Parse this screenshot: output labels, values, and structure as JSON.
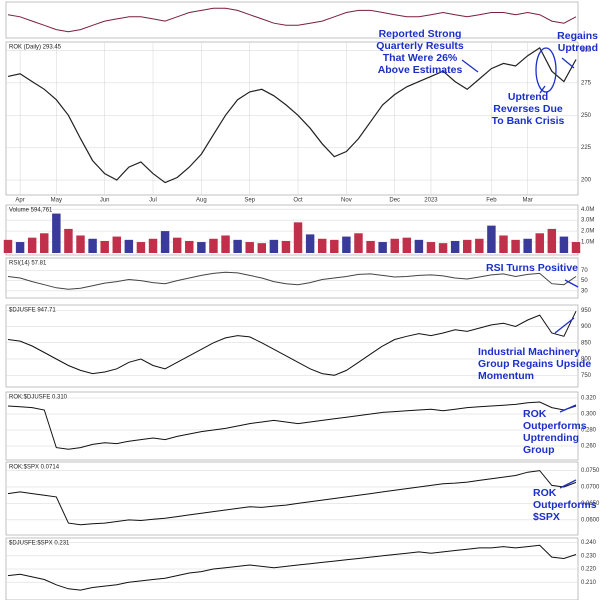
{
  "chart_data": [
    {
      "type": "line",
      "color": "#7a1f3d",
      "ylim": [
        -8,
        7
      ],
      "values": [
        2,
        1,
        -1,
        -3,
        -5,
        -6,
        -5,
        -3,
        -1,
        0,
        1,
        1,
        0,
        -1,
        1,
        3,
        4,
        5,
        5,
        4,
        2,
        0,
        -2,
        -3,
        -3,
        -2,
        -1,
        1,
        3,
        4,
        4,
        3,
        2,
        1,
        1,
        2,
        3,
        2,
        1,
        2,
        3,
        3,
        2,
        3,
        2,
        -1,
        -2,
        1
      ]
    },
    {
      "type": "line",
      "label": "ROK (Daily) 293.45",
      "color": "#222222",
      "ylim": [
        190,
        305
      ],
      "yticks": [
        200,
        225,
        250,
        275,
        300
      ],
      "values": [
        280,
        282,
        276,
        270,
        262,
        250,
        232,
        215,
        205,
        200,
        210,
        214,
        205,
        198,
        202,
        210,
        220,
        235,
        250,
        262,
        268,
        270,
        265,
        258,
        250,
        240,
        228,
        218,
        222,
        232,
        245,
        258,
        266,
        272,
        276,
        280,
        284,
        276,
        270,
        278,
        286,
        290,
        288,
        296,
        302,
        284,
        276,
        293
      ],
      "xticks": [
        {
          "value": 1,
          "label": "Apr"
        },
        {
          "value": 4,
          "label": "May"
        },
        {
          "value": 8,
          "label": "Jun"
        },
        {
          "value": 12,
          "label": "Jul"
        },
        {
          "value": 16,
          "label": "Aug"
        },
        {
          "value": 20,
          "label": "Sep"
        },
        {
          "value": 24,
          "label": "Oct"
        },
        {
          "value": 28,
          "label": "Nov"
        },
        {
          "value": 32,
          "label": "Dec"
        },
        {
          "value": 35,
          "label": "2023"
        },
        {
          "value": 40,
          "label": "Feb"
        },
        {
          "value": 43,
          "label": "Mar"
        }
      ]
    },
    {
      "type": "bar",
      "label": "Volume 594,761",
      "color": "#c0304a",
      "ylim": [
        0,
        4.2
      ],
      "yticks": [
        {
          "value": 1,
          "label": "1.0M"
        },
        {
          "value": 2,
          "label": "2.0M"
        },
        {
          "value": 3,
          "label": "3.0M"
        },
        {
          "value": 4,
          "label": "4.0M"
        }
      ],
      "values": [
        1.2,
        1.0,
        1.4,
        1.8,
        3.6,
        2.2,
        1.6,
        1.3,
        1.1,
        1.5,
        1.2,
        1.0,
        1.3,
        2.0,
        1.4,
        1.1,
        1.0,
        1.3,
        1.6,
        1.2,
        1.0,
        0.9,
        1.2,
        1.1,
        2.8,
        1.7,
        1.3,
        1.2,
        1.5,
        1.8,
        1.1,
        1.0,
        1.3,
        1.4,
        1.2,
        1.0,
        0.9,
        1.1,
        1.2,
        1.3,
        2.5,
        1.6,
        1.2,
        1.3,
        1.8,
        2.2,
        1.5,
        1.0
      ]
    },
    {
      "type": "line",
      "label": "RSI(14) 57.81",
      "color": "#444444",
      "ylim": [
        20,
        90
      ],
      "yticks": [
        30,
        50,
        70
      ],
      "values": [
        58,
        55,
        48,
        42,
        36,
        33,
        35,
        40,
        45,
        48,
        52,
        50,
        46,
        44,
        50,
        55,
        60,
        64,
        66,
        65,
        60,
        55,
        48,
        44,
        42,
        46,
        52,
        55,
        58,
        62,
        63,
        60,
        57,
        58,
        60,
        61,
        59,
        55,
        53,
        57,
        61,
        63,
        58,
        62,
        64,
        44,
        42,
        58
      ]
    },
    {
      "type": "line",
      "label": "$DJUSFE 947.71",
      "color": "#111111",
      "ylim": [
        720,
        960
      ],
      "yticks": [
        750,
        800,
        850,
        900,
        950
      ],
      "values": [
        860,
        855,
        840,
        820,
        800,
        780,
        765,
        755,
        760,
        770,
        790,
        800,
        780,
        770,
        790,
        810,
        830,
        850,
        865,
        872,
        868,
        850,
        830,
        810,
        790,
        770,
        755,
        750,
        765,
        790,
        815,
        840,
        860,
        870,
        878,
        872,
        880,
        890,
        885,
        895,
        905,
        910,
        900,
        920,
        935,
        880,
        870,
        947
      ]
    },
    {
      "type": "line",
      "label": "ROK:$DJUSFE 0.310",
      "color": "#111111",
      "ylim": [
        0.245,
        0.325
      ],
      "yticks": [
        {
          "value": 0.26,
          "label": "0.260"
        },
        {
          "value": 0.28,
          "label": "0.280"
        },
        {
          "value": 0.3,
          "label": "0.300"
        },
        {
          "value": 0.32,
          "label": "0.320"
        }
      ],
      "values": [
        0.31,
        0.309,
        0.308,
        0.305,
        0.258,
        0.256,
        0.258,
        0.262,
        0.264,
        0.263,
        0.266,
        0.268,
        0.27,
        0.268,
        0.272,
        0.275,
        0.278,
        0.28,
        0.282,
        0.285,
        0.288,
        0.29,
        0.292,
        0.29,
        0.288,
        0.29,
        0.292,
        0.294,
        0.296,
        0.298,
        0.3,
        0.302,
        0.303,
        0.304,
        0.305,
        0.306,
        0.304,
        0.306,
        0.308,
        0.309,
        0.31,
        0.311,
        0.312,
        0.314,
        0.315,
        0.308,
        0.305,
        0.31
      ]
    },
    {
      "type": "line",
      "label": "ROK:$SPX 0.0714",
      "color": "#111111",
      "ylim": [
        0.056,
        0.077
      ],
      "yticks": [
        {
          "value": 0.06,
          "label": "0.0600"
        },
        {
          "value": 0.065,
          "label": "0.0650"
        },
        {
          "value": 0.07,
          "label": "0.0700"
        },
        {
          "value": 0.075,
          "label": "0.0750"
        }
      ],
      "values": [
        0.068,
        0.0685,
        0.068,
        0.0675,
        0.067,
        0.059,
        0.0585,
        0.0588,
        0.059,
        0.0595,
        0.06,
        0.0598,
        0.0602,
        0.0605,
        0.061,
        0.0615,
        0.062,
        0.0625,
        0.063,
        0.0635,
        0.064,
        0.0638,
        0.0642,
        0.0645,
        0.065,
        0.0655,
        0.066,
        0.0665,
        0.067,
        0.0675,
        0.068,
        0.0685,
        0.069,
        0.0695,
        0.07,
        0.0705,
        0.071,
        0.0712,
        0.0715,
        0.072,
        0.0725,
        0.073,
        0.0735,
        0.0745,
        0.075,
        0.0705,
        0.07,
        0.0714
      ]
    },
    {
      "type": "line",
      "label": "$DJUSFE:$SPX 0.231",
      "color": "#111111",
      "ylim": [
        0.198,
        0.242
      ],
      "yticks": [
        {
          "value": 0.21,
          "label": "0.210"
        },
        {
          "value": 0.22,
          "label": "0.220"
        },
        {
          "value": 0.23,
          "label": "0.230"
        },
        {
          "value": 0.24,
          "label": "0.240"
        }
      ],
      "values": [
        0.215,
        0.216,
        0.214,
        0.212,
        0.208,
        0.205,
        0.204,
        0.206,
        0.207,
        0.208,
        0.21,
        0.211,
        0.212,
        0.213,
        0.215,
        0.217,
        0.218,
        0.22,
        0.221,
        0.222,
        0.223,
        0.222,
        0.221,
        0.222,
        0.223,
        0.224,
        0.225,
        0.226,
        0.227,
        0.228,
        0.229,
        0.23,
        0.231,
        0.232,
        0.233,
        0.232,
        0.233,
        0.234,
        0.235,
        0.236,
        0.236,
        0.237,
        0.236,
        0.237,
        0.238,
        0.229,
        0.228,
        0.231
      ]
    }
  ],
  "annotations": [
    [
      "Reported Strong",
      "Quarterly Results",
      "That Were 26%",
      "Above Estimates"
    ],
    [
      "Regains",
      "Uptrend"
    ],
    [
      "Uptrend",
      "Reverses Due",
      "To Bank Crisis"
    ],
    [
      "RSI Turns Positive"
    ],
    [
      "Industrial Machinery",
      "Group Regains Upside",
      "Momentum"
    ],
    [
      "ROK",
      "Outperforms",
      "Uptrending",
      "Group"
    ],
    [
      "ROK",
      "Outperforms",
      "$SPX"
    ]
  ]
}
